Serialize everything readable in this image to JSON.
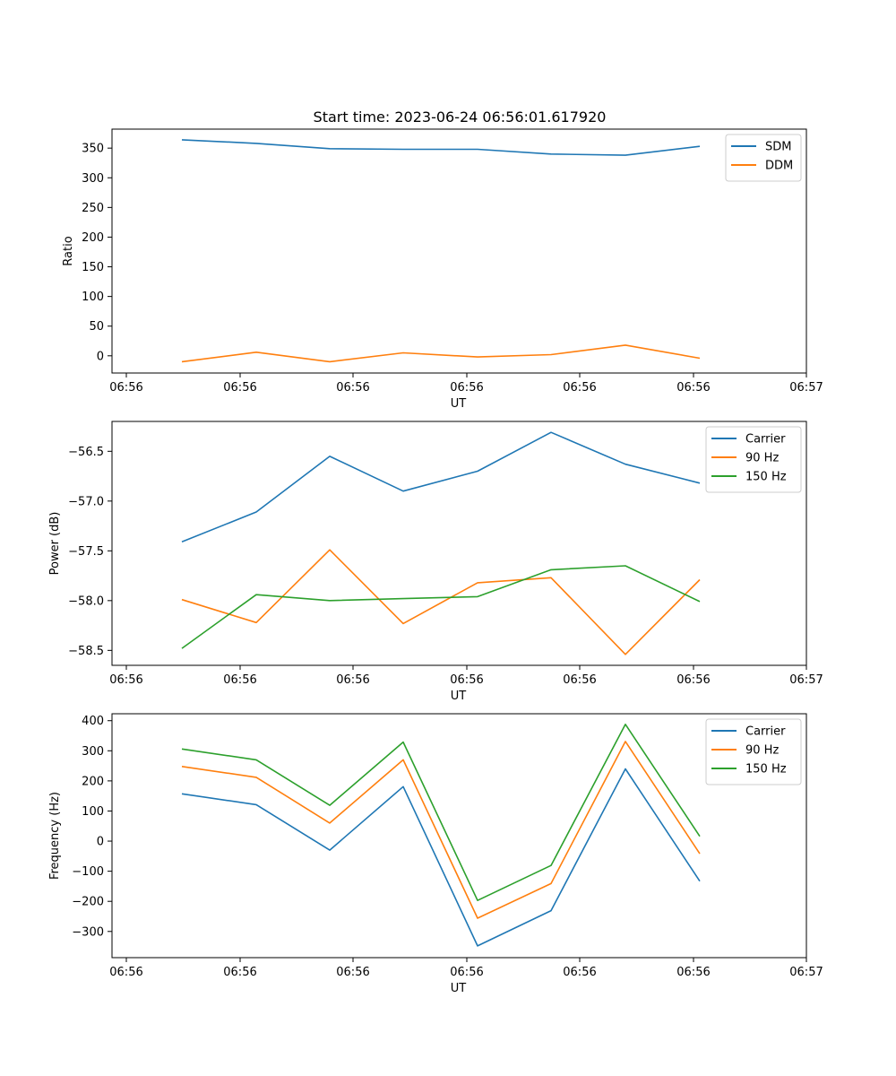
{
  "title": "Start time: 2023-06-24 06:56:01.617920",
  "colors": {
    "blue": "#1f77b4",
    "orange": "#ff7f0e",
    "green": "#2ca02c"
  },
  "chart_data": [
    {
      "type": "line",
      "xlabel": "UT",
      "ylabel": "Ratio",
      "x_tick_labels": [
        "06:56",
        "06:56",
        "06:56",
        "06:56",
        "06:56",
        "06:56",
        "06:57"
      ],
      "y_ticks": [
        0,
        50,
        100,
        150,
        200,
        250,
        300,
        350
      ],
      "y_tick_labels": [
        "0",
        "50",
        "100",
        "150",
        "200",
        "250",
        "300",
        "350"
      ],
      "ylim": [
        -29,
        382
      ],
      "legend": "top-right",
      "series": [
        {
          "name": "SDM",
          "color": "#1f77b4",
          "values": [
            364,
            358,
            349,
            348,
            348,
            340,
            338,
            353
          ]
        },
        {
          "name": "DDM",
          "color": "#ff7f0e",
          "values": [
            -10,
            6,
            -10,
            5,
            -2,
            2,
            18,
            -4
          ]
        }
      ]
    },
    {
      "type": "line",
      "xlabel": "UT",
      "ylabel": "Power (dB)",
      "x_tick_labels": [
        "06:56",
        "06:56",
        "06:56",
        "06:56",
        "06:56",
        "06:56",
        "06:57"
      ],
      "y_ticks": [
        -58.5,
        -58.0,
        -57.5,
        -57.0,
        -56.5
      ],
      "y_tick_labels": [
        "−58.5",
        "−58.0",
        "−57.5",
        "−57.0",
        "−56.5"
      ],
      "ylim": [
        -58.65,
        -56.2
      ],
      "legend": "top-right",
      "series": [
        {
          "name": "Carrier",
          "color": "#1f77b4",
          "values": [
            -57.41,
            -57.11,
            -56.55,
            -56.9,
            -56.7,
            -56.31,
            -56.63,
            -56.82
          ]
        },
        {
          "name": "90 Hz",
          "color": "#ff7f0e",
          "values": [
            -57.99,
            -58.22,
            -57.49,
            -58.23,
            -57.82,
            -57.77,
            -58.54,
            -57.79
          ]
        },
        {
          "name": "150 Hz",
          "color": "#2ca02c",
          "values": [
            -58.48,
            -57.94,
            -58.0,
            -57.98,
            -57.96,
            -57.69,
            -57.65,
            -58.01
          ]
        }
      ]
    },
    {
      "type": "line",
      "xlabel": "UT",
      "ylabel": "Frequency (Hz)",
      "x_tick_labels": [
        "06:56",
        "06:56",
        "06:56",
        "06:56",
        "06:56",
        "06:56",
        "06:57"
      ],
      "y_ticks": [
        -300,
        -200,
        -100,
        0,
        100,
        200,
        300,
        400
      ],
      "y_tick_labels": [
        "−300",
        "−200",
        "−100",
        "0",
        "100",
        "200",
        "300",
        "400"
      ],
      "ylim": [
        -387,
        423
      ],
      "legend": "top-right",
      "series": [
        {
          "name": "Carrier",
          "color": "#1f77b4",
          "values": [
            157,
            121,
            -30,
            181,
            -348,
            -231,
            240,
            -133
          ]
        },
        {
          "name": "90 Hz",
          "color": "#ff7f0e",
          "values": [
            248,
            212,
            60,
            270,
            -256,
            -141,
            331,
            -42
          ]
        },
        {
          "name": "150 Hz",
          "color": "#2ca02c",
          "values": [
            306,
            270,
            119,
            329,
            -197,
            -81,
            388,
            16
          ]
        }
      ]
    }
  ]
}
